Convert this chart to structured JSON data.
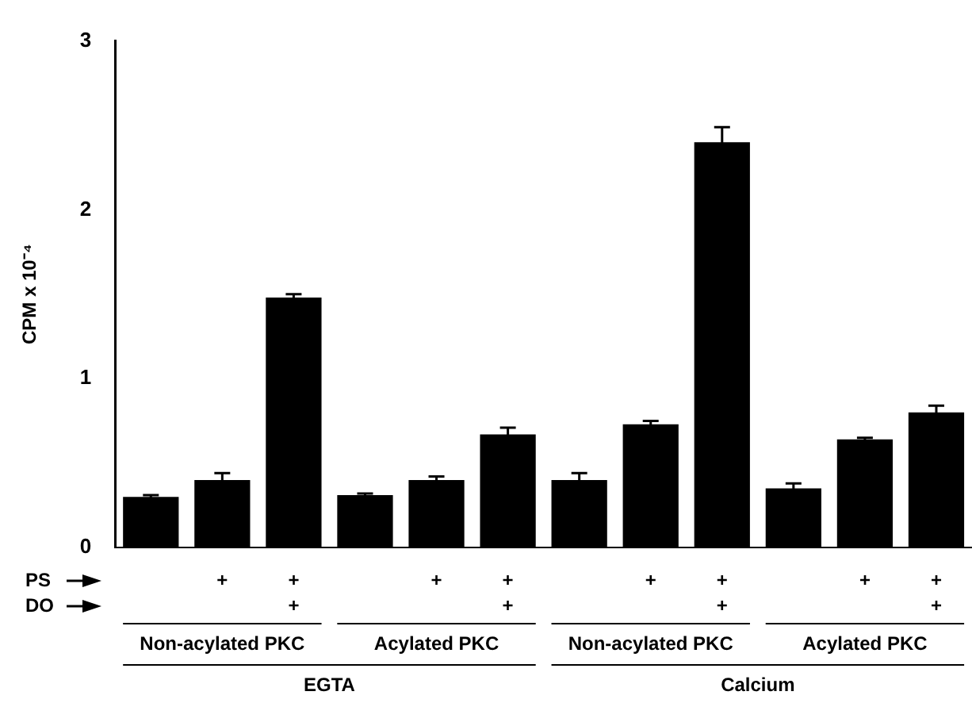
{
  "chart_data": {
    "type": "bar",
    "ylabel": "CPM x 10⁻⁴",
    "categories": [
      null,
      "+",
      "+\n+",
      null,
      "+",
      "+\n+",
      null,
      "+",
      "+\n+",
      null,
      "+",
      "+\n+"
    ],
    "values": [
      0.3,
      0.4,
      1.48,
      0.31,
      0.4,
      0.67,
      0.4,
      0.73,
      2.4,
      0.35,
      0.64,
      0.8
    ],
    "errors": [
      0.01,
      0.04,
      0.02,
      0.01,
      0.02,
      0.04,
      0.04,
      0.02,
      0.09,
      0.03,
      0.01,
      0.04
    ],
    "color": "#000000",
    "ylim": [
      0,
      3
    ],
    "yticks": [
      0,
      1,
      2,
      3
    ],
    "grid": false,
    "legend": false,
    "annotations": [
      "PS",
      "DO",
      "Non-acylated PKC",
      "Acylated PKC",
      "Non-acylated PKC",
      "Acylated PKC",
      "EGTA",
      "Calcium"
    ]
  }
}
